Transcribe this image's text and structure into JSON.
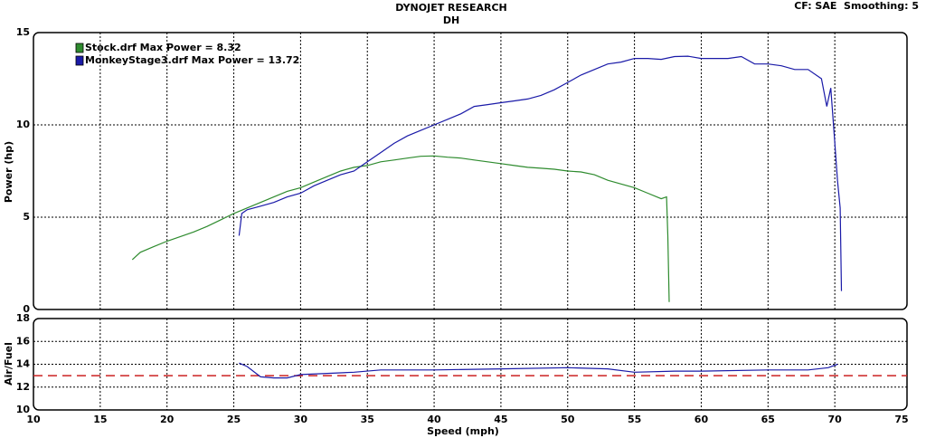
{
  "header": {
    "title": "DYNOJET RESEARCH",
    "subtitle": "DH",
    "corner": "CF: SAE  Smoothing: 5"
  },
  "chart_data": [
    {
      "type": "line",
      "y_label": "Power (hp)",
      "xlim": [
        10,
        75
      ],
      "ylim": [
        0,
        15
      ],
      "yticks": [
        0,
        5,
        10,
        15
      ],
      "grid": true,
      "legend": "top-left",
      "series": [
        {
          "name": "Stock.drf Max Power = 8.32",
          "color": "#2e8b2e",
          "x": [
            17.4,
            18,
            19,
            20,
            21,
            22,
            23,
            24,
            25,
            26,
            27,
            28,
            29,
            30,
            31,
            32,
            33,
            34,
            35,
            36,
            37,
            38,
            39,
            40,
            41,
            42,
            43,
            44,
            45,
            46,
            47,
            48,
            49,
            50,
            51,
            52,
            53,
            54,
            55,
            56,
            57,
            57.4,
            57.5,
            57.6
          ],
          "values": [
            2.7,
            3.1,
            3.4,
            3.7,
            3.95,
            4.2,
            4.5,
            4.85,
            5.2,
            5.5,
            5.8,
            6.1,
            6.4,
            6.6,
            6.9,
            7.2,
            7.5,
            7.7,
            7.8,
            8.0,
            8.1,
            8.2,
            8.3,
            8.32,
            8.25,
            8.2,
            8.1,
            8.0,
            7.9,
            7.8,
            7.7,
            7.65,
            7.6,
            7.5,
            7.45,
            7.3,
            7.0,
            6.8,
            6.6,
            6.3,
            6.0,
            6.1,
            4.0,
            0.4
          ]
        },
        {
          "name": "MonkeyStage3.drf Max Power = 13.72",
          "color": "#1a1aa8",
          "x": [
            25.4,
            25.6,
            26,
            27,
            28,
            29,
            30,
            31,
            32,
            33,
            34,
            35,
            36,
            37,
            38,
            39,
            40,
            41,
            42,
            43,
            44,
            45,
            46,
            47,
            48,
            49,
            50,
            51,
            52,
            53,
            54,
            55,
            56,
            57,
            58,
            59,
            60,
            61,
            62,
            63,
            64,
            65,
            66,
            67,
            68,
            69,
            69.4,
            69.7,
            70,
            70.2,
            70.4,
            70.5
          ],
          "values": [
            4.0,
            5.2,
            5.4,
            5.6,
            5.8,
            6.1,
            6.3,
            6.7,
            7.0,
            7.3,
            7.5,
            8.0,
            8.5,
            9.0,
            9.4,
            9.7,
            10.0,
            10.3,
            10.6,
            11.0,
            11.1,
            11.2,
            11.3,
            11.4,
            11.6,
            11.9,
            12.3,
            12.7,
            13.0,
            13.3,
            13.4,
            13.6,
            13.6,
            13.55,
            13.7,
            13.72,
            13.6,
            13.6,
            13.6,
            13.7,
            13.3,
            13.3,
            13.2,
            13.0,
            13.0,
            12.5,
            11.0,
            12.0,
            9.0,
            7.0,
            5.5,
            1.0
          ]
        }
      ]
    },
    {
      "type": "line",
      "y_label": "Air/Fuel",
      "x_label": "Speed (mph)",
      "xlim": [
        10,
        75
      ],
      "xticks": [
        10,
        15,
        20,
        25,
        30,
        35,
        40,
        45,
        50,
        55,
        60,
        65,
        70,
        75
      ],
      "ylim": [
        10,
        18
      ],
      "yticks": [
        10,
        12,
        14,
        16,
        18
      ],
      "grid": true,
      "reference": 13.0,
      "reference_color": "#cc2222",
      "series": [
        {
          "color": "#1a1aa8",
          "x": [
            25.4,
            26,
            27,
            28,
            29,
            30,
            32,
            34,
            36,
            38,
            40,
            45,
            50,
            53,
            55,
            58,
            60,
            65,
            68,
            69.5,
            70.2
          ],
          "values": [
            14.1,
            13.8,
            12.9,
            12.8,
            12.8,
            13.1,
            13.2,
            13.3,
            13.5,
            13.5,
            13.5,
            13.6,
            13.7,
            13.6,
            13.3,
            13.4,
            13.4,
            13.5,
            13.5,
            13.7,
            14.0
          ]
        }
      ]
    }
  ]
}
